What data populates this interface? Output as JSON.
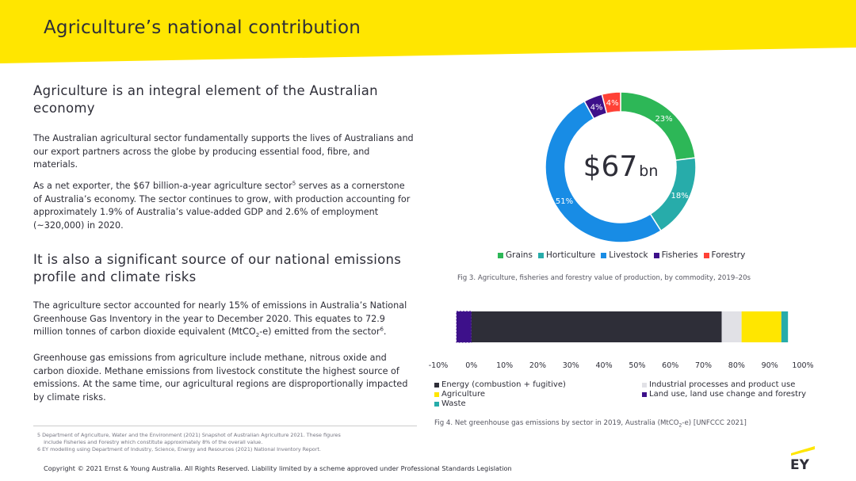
{
  "header": {
    "title": "Agriculture’s national contribution",
    "band_color": "#ffe600"
  },
  "section1": {
    "heading": "Agriculture is an integral element of the Australian economy",
    "para1": "The Australian agricultural sector fundamentally supports the lives of Australians and our export partners across the globe by producing essential food, fibre, and materials.",
    "para2_a": "As a net exporter, the $67 billion-a-year agriculture sector",
    "para2_sup": "5",
    "para2_b": " serves as a cornerstone of Australia’s economy. The sector continues to grow, with production accounting for approximately 1.9% of Australia’s value-added GDP and 2.6% of employment (~320,000) in 2020."
  },
  "section2": {
    "heading": "It is also a significant source of our national emissions profile and climate risks",
    "para1_a": "The agriculture sector accounted for nearly 15% of emissions in Australia’s National Greenhouse Gas Inventory in the year to December 2020. This equates to 72.9 million tonnes of carbon dioxide equivalent (MtCO",
    "para1_sub": "2",
    "para1_b": "-e) emitted from the sector",
    "para1_sup": "6",
    "para1_c": ".",
    "para2": "Greenhouse gas emissions from agriculture include methane, nitrous oxide and carbon dioxide. Methane emissions from livestock constitute the highest source of emissions. At the same time, our agricultural regions are disproportionally impacted by climate risks."
  },
  "footnotes": [
    "5  Department of Agriculture, Water and the Environment (2021) Snapshot of Australian Agriculture 2021. These figures",
    "    include Fisheries and Forestry which constitute approximately 8% of the overall value.",
    "6  EY modelling using Department of Industry, Science, Energy and Resources (2021) National Inventory Report."
  ],
  "copyright": "Copyright © 2021 Ernst & Young Australia. All Rights Reserved. Liability limited by a scheme approved under Professional Standards Legislation",
  "logo": {
    "text": "EY",
    "accent": "#ffe600"
  },
  "chart_data": [
    {
      "type": "pie",
      "center_label_main": "$67",
      "center_label_unit": "bn",
      "categories": [
        "Grains",
        "Horticulture",
        "Livestock",
        "Fisheries",
        "Forestry"
      ],
      "values": [
        23,
        18,
        51,
        4,
        4
      ],
      "value_labels": [
        "23%",
        "18%",
        "51%",
        "4%",
        "4%"
      ],
      "colors": [
        "#2db757",
        "#27acaa",
        "#188ce5",
        "#3d108a",
        "#ff4136"
      ],
      "legend_position": "bottom",
      "caption": "Fig 3. Agriculture, fisheries and forestry value of production, by commodity, 2019–20s"
    },
    {
      "type": "bar",
      "orientation": "horizontal-stacked",
      "series": [
        {
          "name": "Land use, land use change and forestry",
          "values": [
            -4.5
          ],
          "color": "#3d108a"
        },
        {
          "name": "Energy (combustion + fugitive)",
          "values": [
            75.5
          ],
          "color": "#2e2e38"
        },
        {
          "name": "Industrial processes and product use",
          "values": [
            6
          ],
          "color": "#e1e1e6"
        },
        {
          "name": "Agriculture",
          "values": [
            12
          ],
          "color": "#ffe600"
        },
        {
          "name": "Waste",
          "values": [
            2
          ],
          "color": "#27acaa"
        }
      ],
      "xlim": [
        -10,
        100
      ],
      "x_ticks": [
        "-10%",
        "0%",
        "10%",
        "20%",
        "30%",
        "40%",
        "50%",
        "60%",
        "70%",
        "80%",
        "90%",
        "100%"
      ],
      "legend": [
        "Energy (combustion + fugitive)",
        "Industrial processes and product use",
        "Agriculture",
        "Land use, land use change and forestry",
        "Waste"
      ],
      "caption_a": "Fig 4. Net greenhouse gas emissions by sector in 2019, Australia (MtCO",
      "caption_sub": "2",
      "caption_b": "-e) [UNFCCC 2021]"
    }
  ]
}
